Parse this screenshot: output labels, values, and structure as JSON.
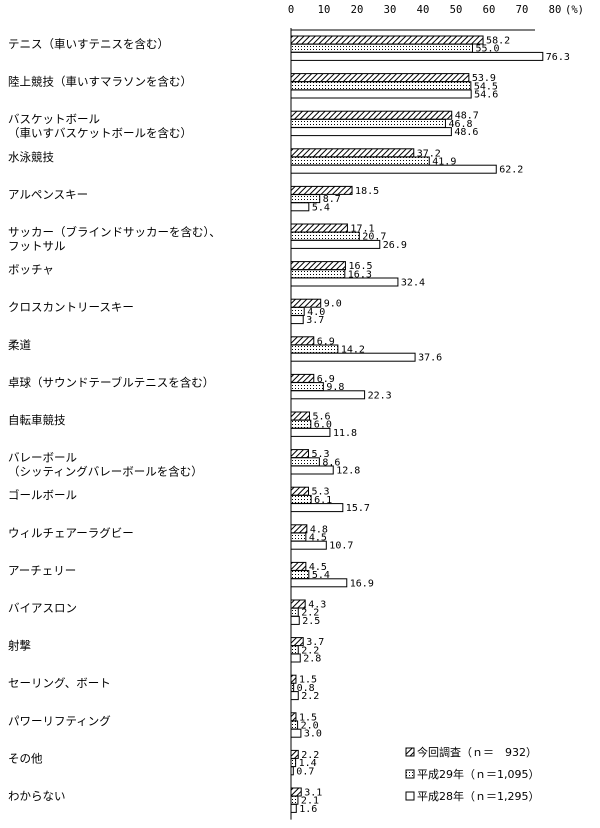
{
  "chart_data": {
    "type": "bar",
    "orientation": "horizontal",
    "xlim": [
      0,
      80
    ],
    "ticks": [
      0,
      10,
      20,
      30,
      40,
      50,
      60,
      70,
      80
    ],
    "unit_label": "(%)",
    "categories": [
      [
        "テニス（車いすテニスを含む）"
      ],
      [
        "陸上競技（車いすマラソンを含む）"
      ],
      [
        "バスケットボール",
        "（車いすバスケットボールを含む）"
      ],
      [
        "水泳競技"
      ],
      [
        "アルペンスキー"
      ],
      [
        "サッカー（ブラインドサッカーを含む）、",
        "フットサル"
      ],
      [
        "ボッチャ"
      ],
      [
        "クロスカントリースキー"
      ],
      [
        "柔道"
      ],
      [
        "卓球（サウンドテーブルテニスを含む）"
      ],
      [
        "自転車競技"
      ],
      [
        "バレーボール",
        "（シッティングバレーボールを含む）"
      ],
      [
        "ゴールボール"
      ],
      [
        "ウィルチェアーラグビー"
      ],
      [
        "アーチェリー"
      ],
      [
        "バイアスロン"
      ],
      [
        "射撃"
      ],
      [
        "セーリング、ボート"
      ],
      [
        "パワーリフティング"
      ],
      [
        "その他"
      ],
      [
        "わからない"
      ]
    ],
    "series": [
      {
        "name": "今回調査（ｎ＝　932）",
        "pattern": "hatch",
        "values": [
          58.2,
          53.9,
          48.7,
          37.2,
          18.5,
          17.1,
          16.5,
          9.0,
          6.9,
          6.9,
          5.6,
          5.3,
          5.3,
          4.8,
          4.5,
          4.3,
          3.7,
          1.5,
          1.5,
          2.2,
          3.1
        ],
        "labels": [
          "58.2",
          "53.9",
          "48.7",
          "37.2",
          "18.5",
          "17.1",
          "16.5",
          "9.0",
          "6.9",
          "6.9",
          "5.6",
          "5.3",
          "5.3",
          "4.8",
          "4.5",
          "4.3",
          "3.7",
          "1.5",
          "1.5",
          "2.2",
          "3.1"
        ]
      },
      {
        "name": "平成29年（ｎ＝1,095）",
        "pattern": "dots",
        "values": [
          55.0,
          54.5,
          46.8,
          41.9,
          8.7,
          20.7,
          16.3,
          4.0,
          14.2,
          9.8,
          6.0,
          8.6,
          6.1,
          4.5,
          5.4,
          2.2,
          2.2,
          0.8,
          2.0,
          1.4,
          2.1
        ],
        "labels": [
          "55.0",
          "54.5",
          "46.8",
          "41.9",
          "8.7",
          "20.7",
          "16.3",
          "4.0",
          "14.2",
          "9.8",
          "6.0",
          "8.6",
          "6.1",
          "4.5",
          "5.4",
          "2.2",
          "2.2",
          "0.8",
          "2.0",
          "1.4",
          "2.1"
        ]
      },
      {
        "name": "平成28年（ｎ＝1,295）",
        "pattern": "white",
        "values": [
          76.3,
          54.6,
          48.6,
          62.2,
          5.4,
          26.9,
          32.4,
          3.7,
          37.6,
          22.3,
          11.8,
          12.8,
          15.7,
          10.7,
          16.9,
          2.5,
          2.8,
          2.2,
          3.0,
          0.7,
          1.6
        ],
        "labels": [
          "76.3",
          "54.6",
          "48.6",
          "62.2",
          "5.4",
          "26.9",
          "32.4",
          "3.7",
          "37.6",
          "22.3",
          "11.8",
          "12.8",
          "15.7",
          "10.7",
          "16.9",
          "2.5",
          "2.8",
          "2.2",
          "3.0",
          "0.7",
          "1.6"
        ]
      }
    ],
    "legend_position": "bottom-right"
  }
}
